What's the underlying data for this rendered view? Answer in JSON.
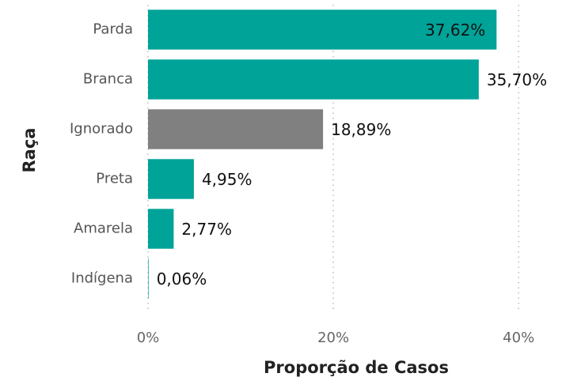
{
  "chart_data": {
    "type": "barh",
    "xlabel": "Proporção de Casos",
    "ylabel": "Raça",
    "categories": [
      "Parda",
      "Branca",
      "Ignorado",
      "Preta",
      "Amarela",
      "Indígena"
    ],
    "values": [
      37.62,
      35.7,
      18.89,
      4.95,
      2.77,
      0.06
    ],
    "value_labels": [
      "37,62%",
      "35,70%",
      "18,89%",
      "4,95%",
      "2,77%",
      "0,06%"
    ],
    "colors": [
      "#00a398",
      "#00a398",
      "#808080",
      "#00a398",
      "#00a398",
      "#00a398"
    ],
    "xlim": [
      0,
      44
    ],
    "xticks": [
      {
        "value": 0,
        "label": "0%"
      },
      {
        "value": 20,
        "label": "20%"
      },
      {
        "value": 40,
        "label": "40%"
      }
    ],
    "grid": true
  }
}
